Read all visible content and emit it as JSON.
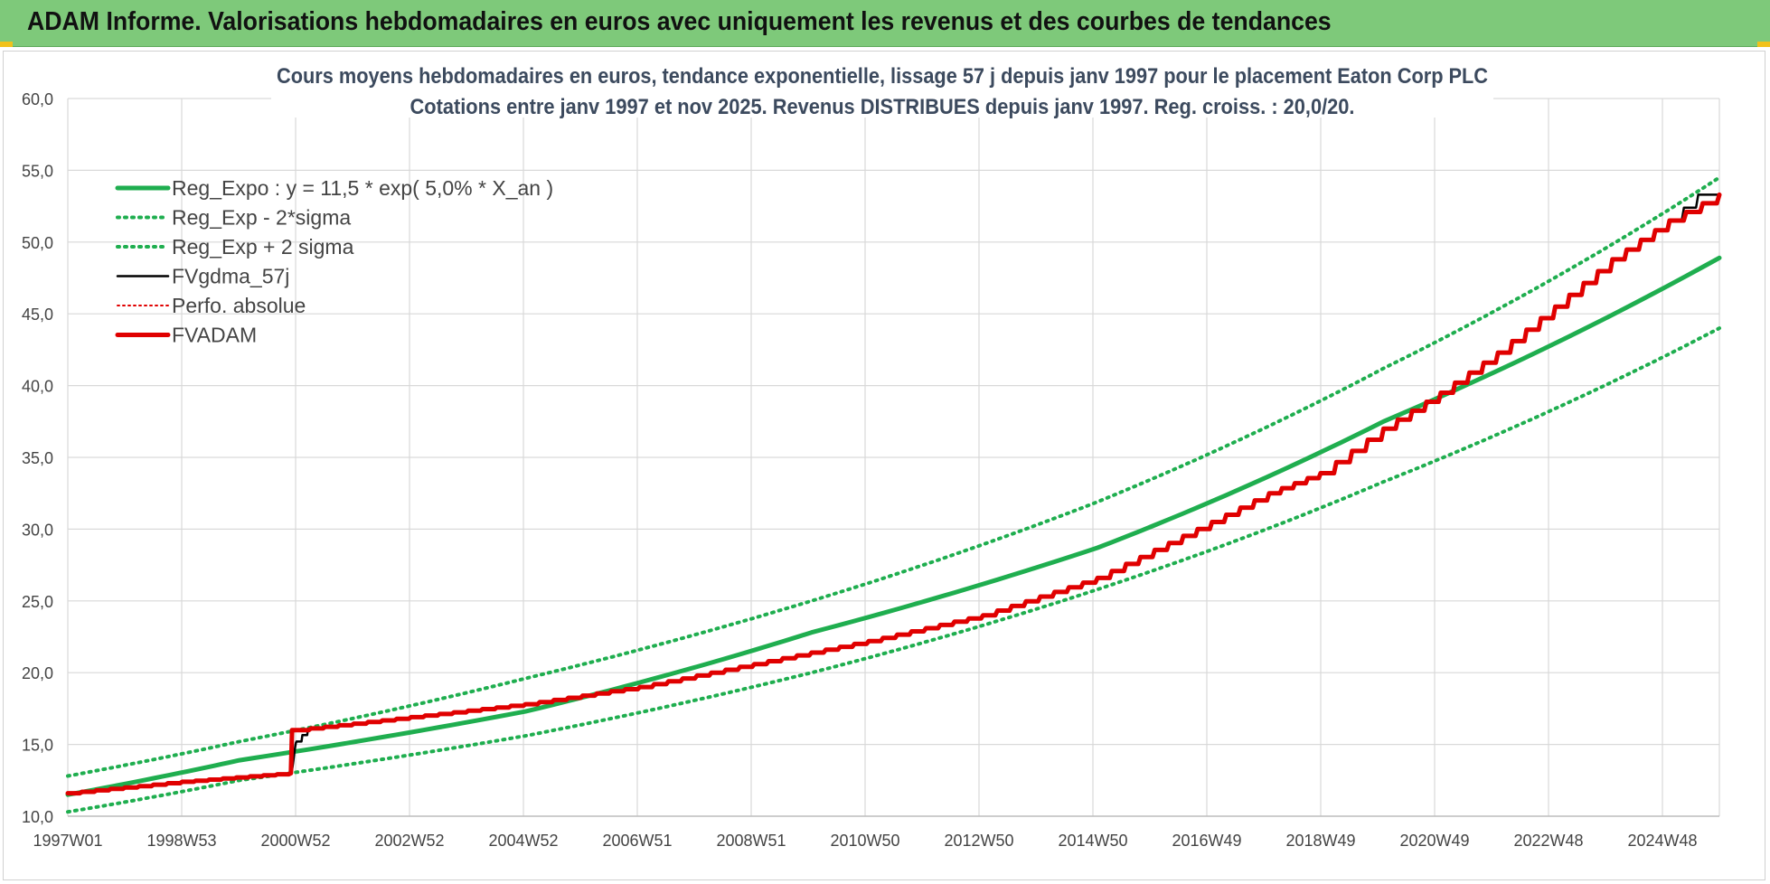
{
  "header": {
    "title": "ADAM Informe. Valorisations hebdomadaires en euros avec uniquement les revenus et des courbes de tendances"
  },
  "chart_data": {
    "type": "line",
    "title_line1": "Cours moyens hebdomadaires en euros, tendance exponentielle, lissage 57 j depuis janv 1997  pour le placement Eaton Corp PLC",
    "title_line2": "Cotations entre janv 1997 et nov 2025. Revenus DISTRIBUES depuis janv 1997. Reg. croiss. : 20,0/20.",
    "ylim": [
      10,
      60
    ],
    "y_ticks": [
      "10,0",
      "15,0",
      "20,0",
      "25,0",
      "30,0",
      "35,0",
      "40,0",
      "45,0",
      "50,0",
      "55,0",
      "60,0"
    ],
    "x_ticks": [
      "1997W01",
      "1998W53",
      "2000W52",
      "2002W52",
      "2004W52",
      "2006W51",
      "2008W51",
      "2010W50",
      "2012W50",
      "2014W50",
      "2016W49",
      "2018W49",
      "2020W49",
      "2022W48",
      "2024W48"
    ],
    "x_range_years": [
      1997.0,
      2025.87
    ],
    "grid": true,
    "legend_position": "top-left",
    "colors": {
      "reg_expo": "#1fae4f",
      "reg_band": "#1fae4f",
      "fvgdma": "#000000",
      "perfo": "#e00000",
      "fvadam": "#e00000",
      "grid": "#d9d9d9",
      "title": "#3c4a5e"
    },
    "series": [
      {
        "name": "Reg_Expo : y = 11,5 * exp( 5,0% *  X_an )",
        "style": "solid-thick",
        "x": [
          1997.0,
          2000.0,
          2005.0,
          2010.0,
          2015.0,
          2020.0,
          2025.87
        ],
        "y": [
          11.5,
          13.9,
          17.3,
          22.8,
          28.7,
          37.5,
          48.9
        ]
      },
      {
        "name": "Reg_Exp - 2*sigma",
        "style": "dotted",
        "x": [
          1997.0,
          2000.0,
          2005.0,
          2010.0,
          2015.0,
          2020.0,
          2025.87
        ],
        "y": [
          10.3,
          12.5,
          15.6,
          20.0,
          25.8,
          33.3,
          44.0
        ]
      },
      {
        "name": "Reg_Exp + 2 sigma",
        "style": "dotted",
        "x": [
          1997.0,
          2000.0,
          2005.0,
          2010.0,
          2015.0,
          2020.0,
          2025.87
        ],
        "y": [
          12.8,
          15.2,
          19.6,
          25.0,
          31.9,
          41.2,
          54.5
        ]
      },
      {
        "name": "FVgdma_57j",
        "style": "solid-thin",
        "x": [
          1997.0,
          1999.0,
          2000.9,
          2001.0,
          2001.2,
          2003.0,
          2005.0,
          2007.0,
          2009.0,
          2011.0,
          2013.0,
          2015.0,
          2017.0,
          2018.0,
          2018.9,
          2020.0,
          2021.0,
          2022.0,
          2023.0,
          2024.0,
          2025.0,
          2025.5,
          2025.87
        ],
        "y": [
          11.6,
          12.4,
          13.0,
          15.2,
          16.1,
          16.9,
          17.8,
          19.0,
          20.6,
          22.2,
          24.0,
          26.6,
          30.5,
          32.5,
          33.9,
          37.0,
          39.5,
          42.3,
          45.5,
          48.8,
          51.5,
          53.3,
          53.3
        ]
      },
      {
        "name": "Perfo. absolue",
        "style": "dotted-thin",
        "x": [
          1997.0,
          1999.0,
          2000.9,
          2001.0,
          2003.0,
          2005.0,
          2007.0,
          2009.0,
          2011.0,
          2013.0,
          2015.0,
          2017.0,
          2018.0,
          2018.9,
          2020.0,
          2021.0,
          2022.0,
          2023.0,
          2024.0,
          2025.0,
          2025.87
        ],
        "y": [
          11.6,
          12.4,
          13.0,
          16.0,
          16.9,
          17.8,
          19.0,
          20.6,
          22.2,
          24.0,
          26.6,
          30.5,
          32.5,
          33.9,
          37.0,
          39.5,
          42.3,
          45.5,
          48.8,
          51.5,
          53.3
        ]
      },
      {
        "name": "FVADAM",
        "style": "solid-thick",
        "x": [
          1997.0,
          1999.0,
          2000.9,
          2001.0,
          2003.0,
          2005.0,
          2007.0,
          2009.0,
          2011.0,
          2013.0,
          2015.0,
          2017.0,
          2018.0,
          2018.9,
          2020.0,
          2021.0,
          2022.0,
          2023.0,
          2024.0,
          2025.0,
          2025.87
        ],
        "y": [
          11.6,
          12.4,
          13.0,
          16.0,
          16.9,
          17.8,
          19.0,
          20.6,
          22.2,
          24.0,
          26.6,
          30.5,
          32.5,
          33.9,
          37.0,
          39.5,
          42.3,
          45.5,
          48.8,
          51.5,
          53.3
        ]
      }
    ]
  }
}
